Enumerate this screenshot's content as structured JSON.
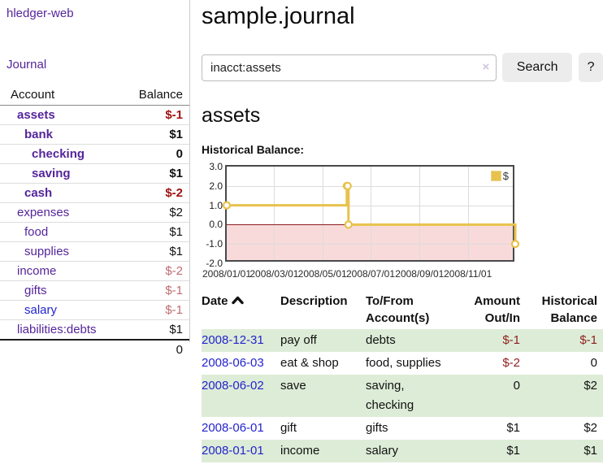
{
  "app": {
    "brand": "hledger-web"
  },
  "colors": {
    "purple": "#55259b",
    "blue_link": "#2424cd",
    "neg_strong": "#a01313",
    "neg_soft": "#bf6b70",
    "neg_txn": "#8f1f1f",
    "stripe_green": "#ddecd7",
    "chart_gold": "#e8c24c",
    "chart_pink": "#f9dada",
    "chart_zero_red": "#8b1c1c"
  },
  "sidebar": {
    "nav": {
      "journal_label": "Journal"
    },
    "accounts_table": {
      "headers": {
        "account": "Account",
        "balance": "Balance"
      },
      "rows": [
        {
          "account": "assets",
          "balance": "$-1",
          "level": 1,
          "bold": true
        },
        {
          "account": "bank",
          "balance": "$1",
          "level": 2,
          "bold": true
        },
        {
          "account": "checking",
          "balance": "0",
          "level": 3,
          "bold": true
        },
        {
          "account": "saving",
          "balance": "$1",
          "level": 3,
          "bold": true
        },
        {
          "account": "cash",
          "balance": "$-2",
          "level": 2,
          "bold": true
        },
        {
          "account": "expenses",
          "balance": "$2",
          "level": 1,
          "bold": false
        },
        {
          "account": "food",
          "balance": "$1",
          "level": 2,
          "bold": false
        },
        {
          "account": "supplies",
          "balance": "$1",
          "level": 2,
          "bold": false
        },
        {
          "account": "income",
          "balance": "$-2",
          "level": 1,
          "bold": false
        },
        {
          "account": "gifts",
          "balance": "$-1",
          "level": 2,
          "bold": false
        },
        {
          "account": "salary",
          "balance": "$-1",
          "level": 2,
          "bold": false,
          "blue": true
        },
        {
          "account": "liabilities:debts",
          "balance": "$1",
          "level": 1,
          "bold": false
        }
      ],
      "total": "0"
    }
  },
  "header": {
    "title": "sample.journal"
  },
  "search": {
    "value": "inacct:assets",
    "clear_icon": "×",
    "button_label": "Search",
    "help_label": "?"
  },
  "content": {
    "account_heading": "assets",
    "chart_title": "Historical Balance:"
  },
  "chart_data": {
    "type": "line",
    "step": true,
    "title": "Historical Balance of assets",
    "legend_position": "top-right",
    "negative_region_shaded": true,
    "xrange": [
      "2008-01-01",
      "2009-01-01"
    ],
    "ylim": [
      -2,
      3
    ],
    "yticks": [
      {
        "v": 3,
        "label": "3.0"
      },
      {
        "v": 2,
        "label": "2.0"
      },
      {
        "v": 1,
        "label": "1.0"
      },
      {
        "v": 0,
        "label": "0.0"
      },
      {
        "v": -1,
        "label": "-1.0"
      },
      {
        "v": -2,
        "label": "-2.0"
      }
    ],
    "xticks": [
      {
        "date": "2008-01-01",
        "label": "2008/01/01"
      },
      {
        "date": "2008-03-01",
        "label": "2008/03/01"
      },
      {
        "date": "2008-05-01",
        "label": "2008/05/01"
      },
      {
        "date": "2008-07-01",
        "label": "2008/07/01"
      },
      {
        "date": "2008-09-01",
        "label": "2008/09/01"
      },
      {
        "date": "2008-11-01",
        "label": "2008/11/01"
      }
    ],
    "series": [
      {
        "name": "$",
        "points": [
          [
            "2008-01-01",
            1
          ],
          [
            "2008-06-01",
            2
          ],
          [
            "2008-06-02",
            2
          ],
          [
            "2008-06-03",
            0
          ],
          [
            "2008-12-31",
            -1
          ]
        ]
      }
    ]
  },
  "register": {
    "headers": [
      {
        "line1": "Date",
        "line2": ""
      },
      {
        "line1": "Description",
        "line2": ""
      },
      {
        "line1": "To/From",
        "line2": "Account(s)"
      },
      {
        "line1": "Amount",
        "line2": "Out/In"
      },
      {
        "line1": "Historical",
        "line2": "Balance"
      }
    ],
    "rows": [
      {
        "date": "2008-12-31",
        "description": "pay off",
        "accounts": "debts",
        "amount": "$-1",
        "balance": "$-1"
      },
      {
        "date": "2008-06-03",
        "description": "eat & shop",
        "accounts": "food, supplies",
        "amount": "$-2",
        "balance": "0"
      },
      {
        "date": "2008-06-02",
        "description": "save",
        "accounts": "saving, checking",
        "amount": "0",
        "balance": "$2"
      },
      {
        "date": "2008-06-01",
        "description": "gift",
        "accounts": "gifts",
        "amount": "$1",
        "balance": "$2"
      },
      {
        "date": "2008-01-01",
        "description": "income",
        "accounts": "salary",
        "amount": "$1",
        "balance": "$1"
      }
    ]
  }
}
